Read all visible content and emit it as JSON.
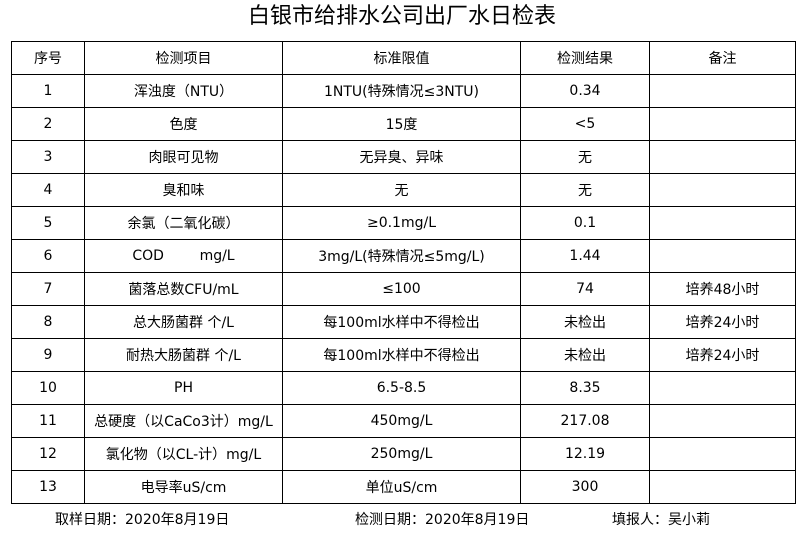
{
  "title": "白银市给排水公司出厂水日检表",
  "columns": [
    "序号",
    "检测项目",
    "标准限值",
    "检测结果",
    "备注"
  ],
  "rows": [
    [
      "1",
      "浑浊度（NTU）",
      "1NTU(特殊情况≤3NTU)",
      "0.34",
      ""
    ],
    [
      "2",
      "色度",
      "15度",
      "<5",
      ""
    ],
    [
      "3",
      "肉眼可见物",
      "无异臭、异味",
      "无",
      ""
    ],
    [
      "4",
      "臭和味",
      "无",
      "无",
      ""
    ],
    [
      "5",
      "余氯（二氧化碳）",
      "≥0.1mg/L",
      "0.1",
      ""
    ],
    [
      "6",
      "COD        mg/L",
      "3mg/L(特殊情况≤5mg/L)",
      "1.44",
      ""
    ],
    [
      "7",
      "菌落总数CFU/mL",
      "≤100",
      "74",
      "培养48小时"
    ],
    [
      "8",
      "总大肠菌群 个/L",
      "每100ml水样中不得检出",
      "未检出",
      "培养24小时"
    ],
    [
      "9",
      "耐热大肠菌群 个/L",
      "每100ml水样中不得检出",
      "未检出",
      "培养24小时"
    ],
    [
      "10",
      "PH",
      "6.5-8.5",
      "8.35",
      ""
    ],
    [
      "11",
      "总硬度（以CaCo3计）mg/L",
      "450mg/L",
      "217.08",
      ""
    ],
    [
      "12",
      "氯化物（以CL-计）mg/L",
      "250mg/L",
      "12.19",
      ""
    ],
    [
      "13",
      "电导率uS/cm",
      "单位uS/cm",
      "300",
      ""
    ]
  ],
  "footer": {
    "sampling_date": "取样日期：2020年8月19日",
    "test_date": "检测日期：2020年8月19日",
    "reporter": "填报人：吴小莉"
  }
}
